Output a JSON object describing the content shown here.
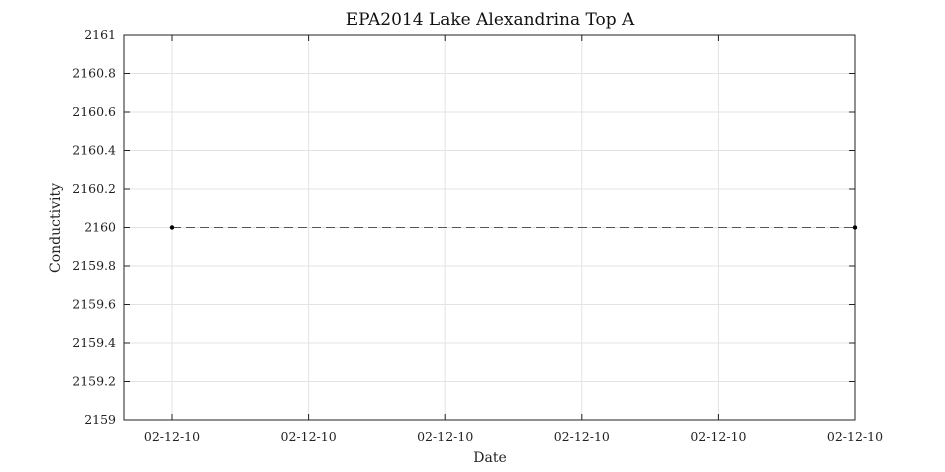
{
  "chart_data": {
    "type": "line",
    "title": "EPA2014 Lake Alexandrina Top A",
    "xlabel": "Date",
    "ylabel": "Conductivity",
    "ylim": [
      2159,
      2161
    ],
    "y_ticks": [
      "2159",
      "2159.2",
      "2159.4",
      "2159.6",
      "2159.8",
      "2160",
      "2160.2",
      "2160.4",
      "2160.6",
      "2160.8",
      "2161"
    ],
    "x_tick_labels": [
      "02-12-10",
      "02-12-10",
      "02-12-10",
      "02-12-10",
      "02-12-10",
      "02-12-10"
    ],
    "grid": true,
    "series": [
      {
        "points": [
          {
            "x": "02-12-10",
            "y": 2160
          },
          {
            "x": "02-12-10",
            "y": 2160
          }
        ],
        "line_style": "dashed",
        "color": "#555555",
        "marker_color": "#000000"
      }
    ]
  }
}
